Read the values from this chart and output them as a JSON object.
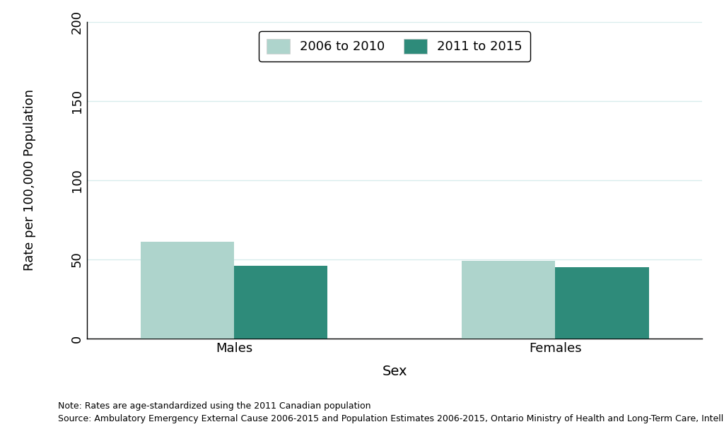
{
  "categories": [
    "Males",
    "Females"
  ],
  "values_2006_2010": [
    61,
    49
  ],
  "values_2011_2015": [
    46,
    45
  ],
  "color_2006_2010": "#aed4cc",
  "color_2011_2015": "#2e8b7a",
  "legend_labels": [
    "2006 to 2010",
    "2011 to 2015"
  ],
  "ylabel": "Rate per 100,000 Population",
  "xlabel": "Sex",
  "ylim": [
    0,
    200
  ],
  "yticks": [
    0,
    50,
    100,
    150,
    200
  ],
  "bar_width": 0.35,
  "note_line1": "Note: Rates are age-standardized using the 2011 Canadian population",
  "note_line2": "Source: Ambulatory Emergency External Cause 2006-2015 and Population Estimates 2006-2015, Ontario Ministry of Health and Long-Term Care, IntelliHEALTH Ontario",
  "background_color": "#ffffff",
  "grid_color": "#d8ecec"
}
